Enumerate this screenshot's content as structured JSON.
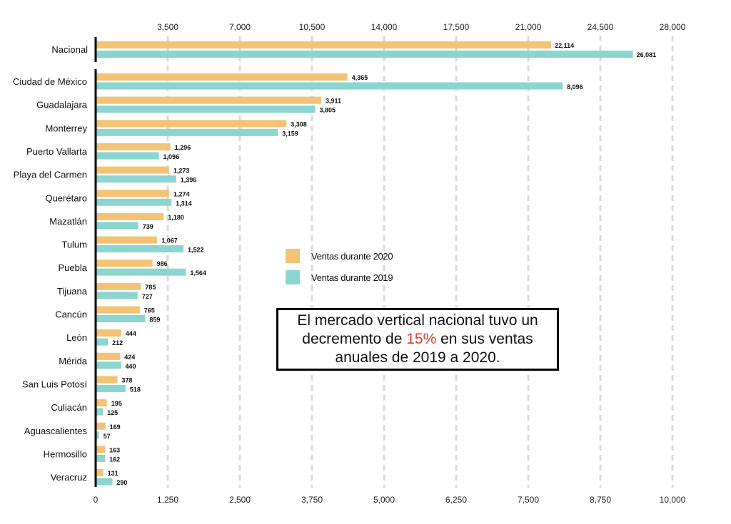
{
  "chart_data": {
    "type": "bar",
    "orientation": "horizontal",
    "colors": {
      "2020": "#f2c275",
      "2019": "#8ad5d0",
      "axis": "#000000",
      "grid": "#d9d9d9",
      "highlight": "#e23c2a"
    },
    "legend": [
      "Ventas durante 2020",
      "Ventas durante 2019"
    ],
    "legend_position": "center",
    "top_axis": {
      "applies_to": "Nacional",
      "range": [
        0,
        28000
      ],
      "ticks": [
        3500,
        7000,
        10500,
        14000,
        17500,
        21000,
        24500,
        28000
      ],
      "tick_labels": [
        "3,500",
        "7,000",
        "10,500",
        "14,000",
        "17,500",
        "21,000",
        "24,500",
        "28,000"
      ]
    },
    "bottom_axis": {
      "range": [
        0,
        10000
      ],
      "ticks": [
        0,
        1250,
        2500,
        3750,
        5000,
        6250,
        7500,
        8750,
        10000
      ],
      "tick_labels": [
        "0",
        "1,250",
        "2,500",
        "3,750",
        "5,000",
        "6,250",
        "7,500",
        "8,750",
        "10,000"
      ]
    },
    "grid": true,
    "national": {
      "category": "Nacional",
      "values_2020": 22114,
      "labels_2020": "22,114",
      "values_2019": 26081,
      "labels_2019": "26,081"
    },
    "categories": [
      "Ciudad de México",
      "Guadalajara",
      "Monterrey",
      "Puerto Vallarta",
      "Playa del Carmen",
      "Querétaro",
      "Mazatlán",
      "Tulum",
      "Puebla",
      "Tijuana",
      "Cancún",
      "León",
      "Mérida",
      "San Luis Potosí",
      "Culiacán",
      "Aguascalientes",
      "Hermosillo",
      "Veracruz"
    ],
    "series": [
      {
        "name": "Ventas durante 2020",
        "values": [
          4365,
          3911,
          3308,
          1296,
          1273,
          1274,
          1180,
          1067,
          986,
          785,
          765,
          444,
          424,
          378,
          195,
          169,
          163,
          131
        ],
        "labels": [
          "4,365",
          "3,911",
          "3,308",
          "1,296",
          "1,273",
          "1,274",
          "1,180",
          "1,067",
          "986",
          "785",
          "765",
          "444",
          "424",
          "378",
          "195",
          "169",
          "163",
          "131"
        ]
      },
      {
        "name": "Ventas durante 2019",
        "values": [
          8096,
          3805,
          3159,
          1096,
          1396,
          1314,
          739,
          1522,
          1564,
          727,
          859,
          212,
          440,
          518,
          125,
          57,
          162,
          290
        ],
        "labels": [
          "8,096",
          "3,805",
          "3,159",
          "1,096",
          "1,396",
          "1,314",
          "739",
          "1,522",
          "1,564",
          "727",
          "859",
          "212",
          "440",
          "518",
          "125",
          "57",
          "162",
          "290"
        ]
      }
    ],
    "annotation": {
      "before": "El mercado vertical nacional tuvo un decremento de ",
      "highlight": "15%",
      "after": " en sus ventas anuales de 2019 a 2020."
    }
  }
}
